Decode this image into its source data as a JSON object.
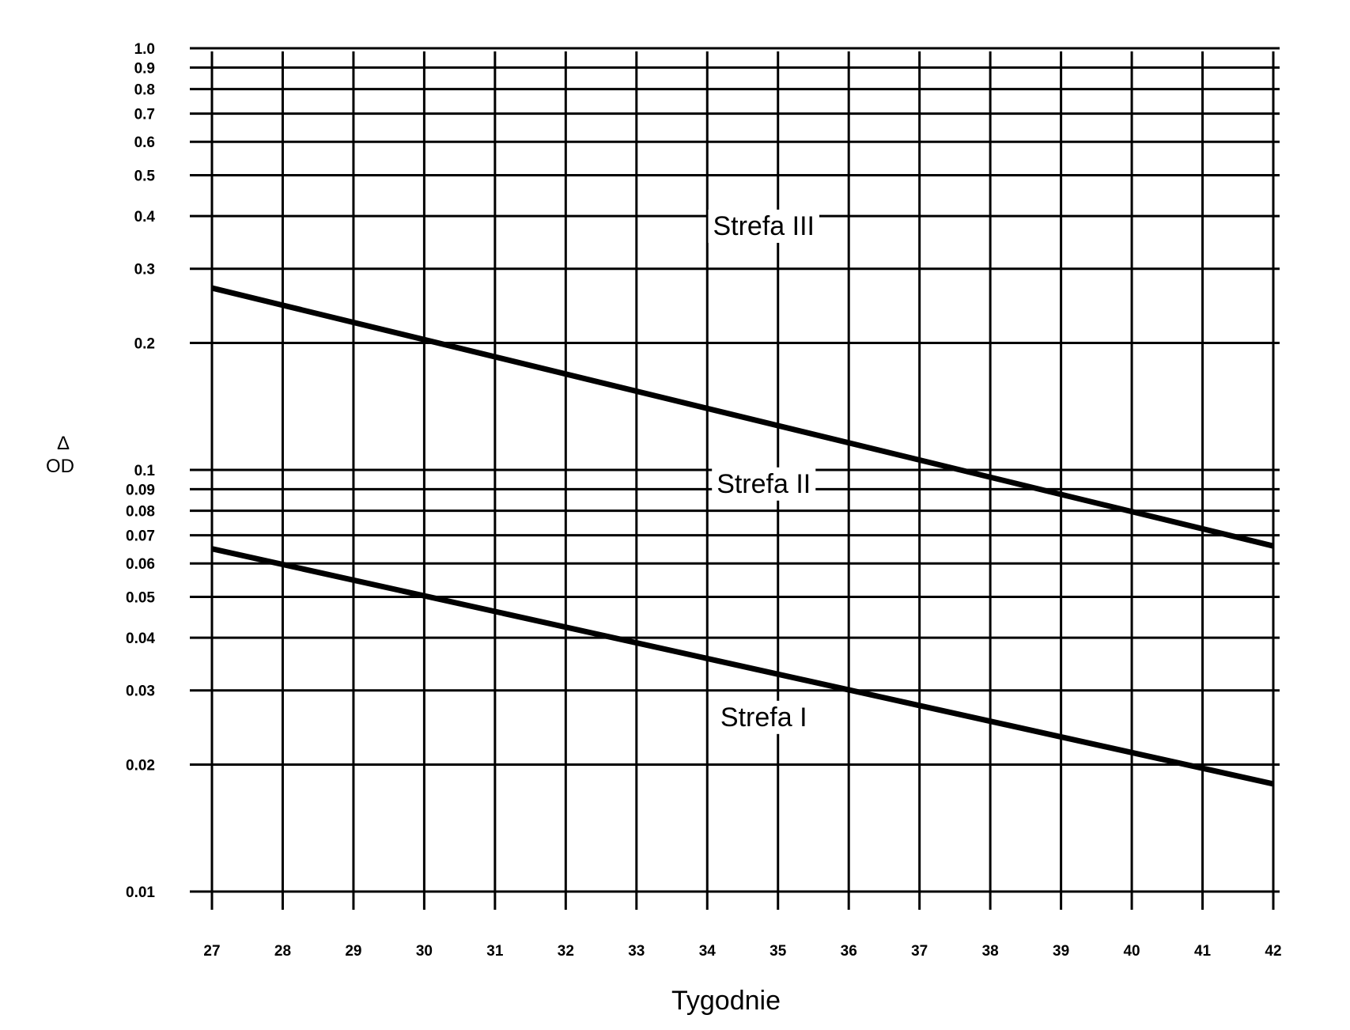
{
  "chart_data": {
    "type": "line",
    "xlabel": "Tygodnie",
    "ylabel": "Δ\nOD",
    "y_scale": "log",
    "xlim": [
      27,
      42
    ],
    "ylim": [
      0.01,
      1.0
    ],
    "x_ticks": [
      "27",
      "28",
      "29",
      "30",
      "31",
      "32",
      "33",
      "34",
      "35",
      "36",
      "37",
      "38",
      "39",
      "40",
      "41",
      "42"
    ],
    "y_ticks": [
      "1.0",
      "0.9",
      "0.8",
      "0.7",
      "0.6",
      "0.5",
      "0.4",
      "0.3",
      "0.2",
      "0.1",
      "0.09",
      "0.08",
      "0.07",
      "0.06",
      "0.05",
      "0.04",
      "0.03",
      "0.02",
      "0.01"
    ],
    "y_tick_values": [
      1.0,
      0.9,
      0.8,
      0.7,
      0.6,
      0.5,
      0.4,
      0.3,
      0.2,
      0.1,
      0.09,
      0.08,
      0.07,
      0.06,
      0.05,
      0.04,
      0.03,
      0.02,
      0.01
    ],
    "series": [
      {
        "x": [
          27,
          42
        ],
        "values": [
          0.27,
          0.066
        ]
      },
      {
        "x": [
          27,
          42
        ],
        "values": [
          0.065,
          0.018
        ]
      }
    ],
    "annotations": [
      {
        "text": "Strefa III",
        "x": 35,
        "y": 0.38
      },
      {
        "text": "Strefa II",
        "x": 35,
        "y": 0.093
      },
      {
        "text": "Strefa I",
        "x": 35,
        "y": 0.026
      }
    ],
    "grid": true
  }
}
